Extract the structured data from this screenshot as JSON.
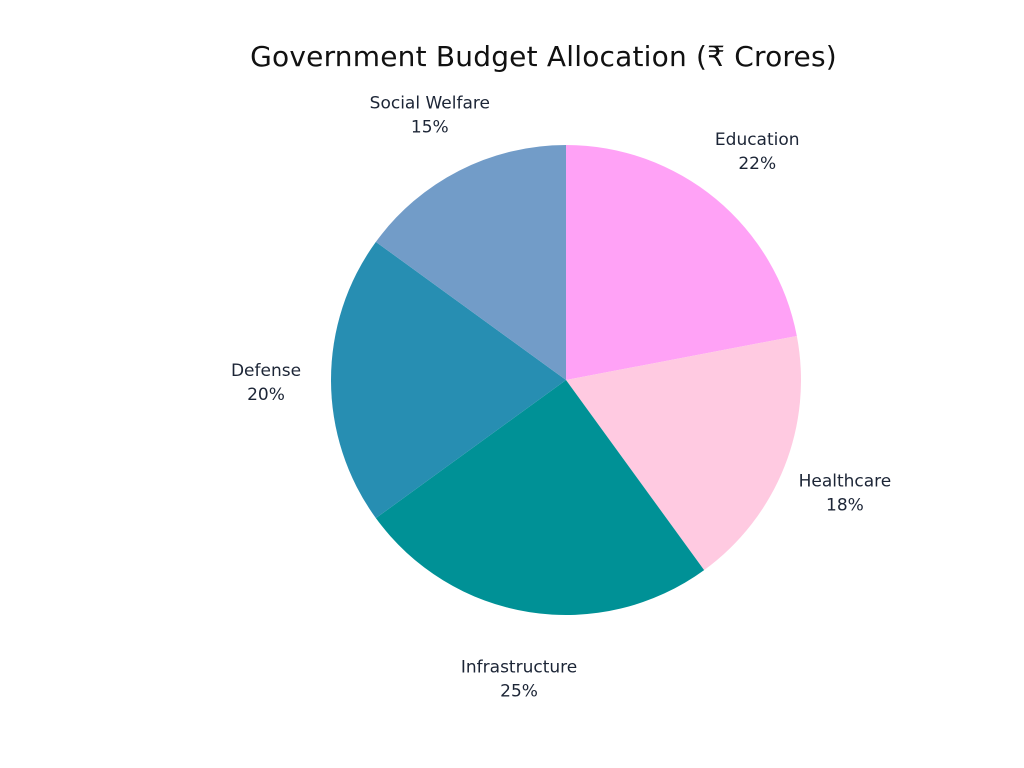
{
  "chart_data": {
    "type": "pie",
    "title": "Government Budget Allocation (₹ Crores)",
    "slices": [
      {
        "label": "Education",
        "value": 22,
        "value_label": "22%",
        "color": "#FFA2F6"
      },
      {
        "label": "Healthcare",
        "value": 18,
        "value_label": "18%",
        "color": "#FFCAE1"
      },
      {
        "label": "Infrastructure",
        "value": 25,
        "value_label": "25%",
        "color": "#009196"
      },
      {
        "label": "Defense",
        "value": 20,
        "value_label": "20%",
        "color": "#278EB2"
      },
      {
        "label": "Social Welfare",
        "value": 15,
        "value_label": "15%",
        "color": "#729CC8"
      }
    ],
    "start_angle": "12 o'clock",
    "direction": "clockwise",
    "legend": "none",
    "label_position": "outside"
  }
}
